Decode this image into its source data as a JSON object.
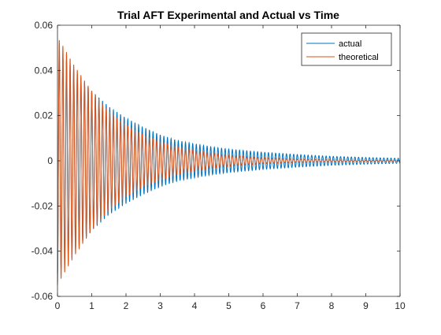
{
  "chart_data": {
    "type": "line",
    "title": "Trial AFT Experimental and Actual vs Time",
    "xlabel": "",
    "ylabel": "",
    "xlim": [
      0,
      10
    ],
    "ylim": [
      -0.06,
      0.06
    ],
    "x_ticks": [
      0,
      1,
      2,
      3,
      4,
      5,
      6,
      7,
      8,
      9,
      10
    ],
    "x_tick_labels": [
      "0",
      "1",
      "2",
      "3",
      "4",
      "5",
      "6",
      "7",
      "8",
      "9",
      "10"
    ],
    "y_ticks": [
      -0.06,
      -0.04,
      -0.02,
      0,
      0.02,
      0.04,
      0.06
    ],
    "y_tick_labels": [
      "-0.06",
      "-0.04",
      "-0.02",
      "0",
      "0.02",
      "0.04",
      "0.06"
    ],
    "grid": false,
    "legend": {
      "position": "top-right"
    },
    "series": [
      {
        "name": "actual",
        "color": "#0072BD",
        "envelope": {
          "t": [
            0,
            0.5,
            1,
            1.5,
            2,
            2.5,
            3,
            3.5,
            4,
            4.5,
            5,
            6,
            7,
            8,
            9,
            10
          ],
          "amplitude": [
            0.05,
            0.04,
            0.031,
            0.024,
            0.019,
            0.015,
            0.0115,
            0.009,
            0.0075,
            0.0062,
            0.0052,
            0.0038,
            0.0028,
            0.002,
            0.0015,
            0.0011
          ]
        },
        "cycles_per_unit": 9.5
      },
      {
        "name": "theoretical",
        "color": "#D95319",
        "envelope": {
          "t": [
            0,
            0.5,
            1,
            1.5,
            2,
            2.5,
            3,
            3.5,
            4,
            4.5,
            5,
            6,
            7,
            8,
            9,
            10
          ],
          "amplitude": [
            0.055,
            0.042,
            0.031,
            0.022,
            0.016,
            0.0115,
            0.0085,
            0.006,
            0.0045,
            0.0033,
            0.0024,
            0.0013,
            0.0007,
            0.0004,
            0.0002,
            0.0001
          ]
        },
        "cycles_per_unit": 9.5
      }
    ]
  }
}
